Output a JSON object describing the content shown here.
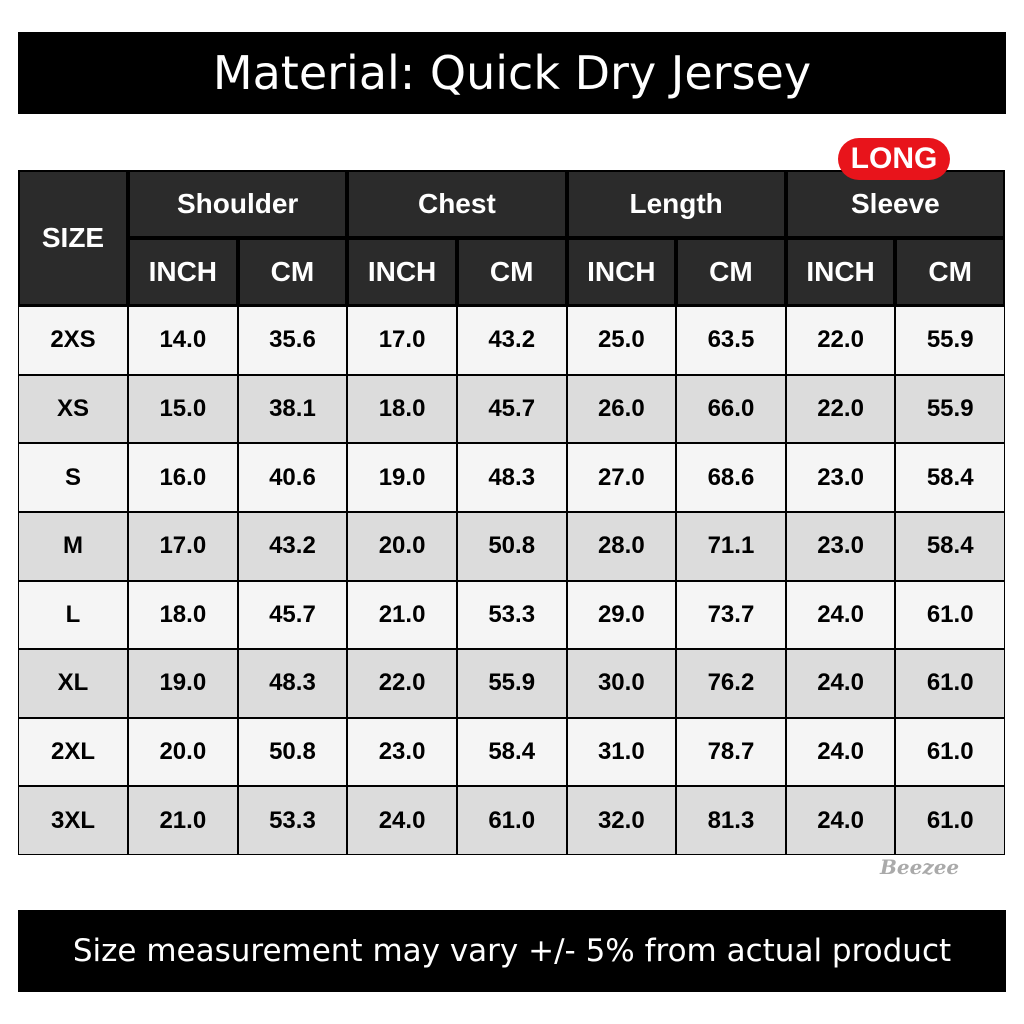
{
  "header": {
    "title": "Material: Quick Dry Jersey"
  },
  "badge": "LONG",
  "table": {
    "size_label": "SIZE",
    "groups": [
      "Shoulder",
      "Chest",
      "Length",
      "Sleeve"
    ],
    "subheaders": [
      "INCH",
      "CM",
      "INCH",
      "CM",
      "INCH",
      "CM",
      "INCH",
      "CM"
    ],
    "rows": [
      [
        "2XS",
        "14.0",
        "35.6",
        "17.0",
        "43.2",
        "25.0",
        "63.5",
        "22.0",
        "55.9"
      ],
      [
        "XS",
        "15.0",
        "38.1",
        "18.0",
        "45.7",
        "26.0",
        "66.0",
        "22.0",
        "55.9"
      ],
      [
        "S",
        "16.0",
        "40.6",
        "19.0",
        "48.3",
        "27.0",
        "68.6",
        "23.0",
        "58.4"
      ],
      [
        "M",
        "17.0",
        "43.2",
        "20.0",
        "50.8",
        "28.0",
        "71.1",
        "23.0",
        "58.4"
      ],
      [
        "L",
        "18.0",
        "45.7",
        "21.0",
        "53.3",
        "29.0",
        "73.7",
        "24.0",
        "61.0"
      ],
      [
        "XL",
        "19.0",
        "48.3",
        "22.0",
        "55.9",
        "30.0",
        "76.2",
        "24.0",
        "61.0"
      ],
      [
        "2XL",
        "20.0",
        "50.8",
        "23.0",
        "58.4",
        "31.0",
        "78.7",
        "24.0",
        "61.0"
      ],
      [
        "3XL",
        "21.0",
        "53.3",
        "24.0",
        "61.0",
        "32.0",
        "81.3",
        "24.0",
        "61.0"
      ]
    ]
  },
  "brand": "Beezee",
  "footer": "Size measurement may vary +/- 5% from actual product"
}
